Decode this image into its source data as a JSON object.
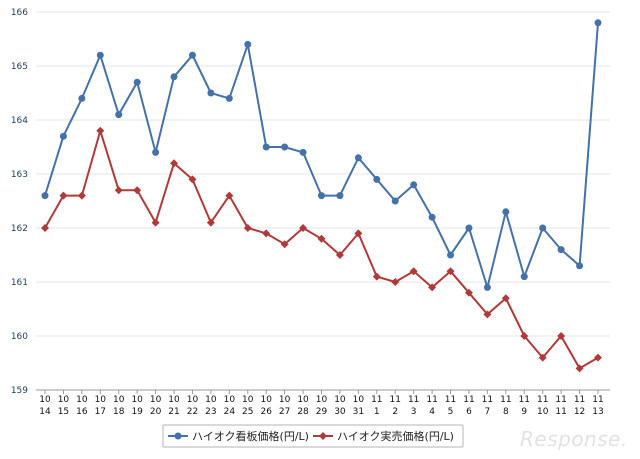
{
  "chart_data": {
    "type": "line",
    "title": "",
    "xlabel": "",
    "ylabel": "",
    "ylim": [
      159,
      166
    ],
    "yticks": [
      159,
      160,
      161,
      162,
      163,
      164,
      165,
      166
    ],
    "grid": true,
    "legend": "bottom",
    "categories": [
      [
        "10",
        "14"
      ],
      [
        "10",
        "15"
      ],
      [
        "10",
        "16"
      ],
      [
        "10",
        "17"
      ],
      [
        "10",
        "18"
      ],
      [
        "10",
        "19"
      ],
      [
        "10",
        "20"
      ],
      [
        "10",
        "21"
      ],
      [
        "10",
        "22"
      ],
      [
        "10",
        "23"
      ],
      [
        "10",
        "24"
      ],
      [
        "10",
        "25"
      ],
      [
        "10",
        "26"
      ],
      [
        "10",
        "27"
      ],
      [
        "10",
        "28"
      ],
      [
        "10",
        "29"
      ],
      [
        "10",
        "30"
      ],
      [
        "10",
        "31"
      ],
      [
        "11",
        "1"
      ],
      [
        "11",
        "2"
      ],
      [
        "11",
        "3"
      ],
      [
        "11",
        "4"
      ],
      [
        "11",
        "5"
      ],
      [
        "11",
        "6"
      ],
      [
        "11",
        "7"
      ],
      [
        "11",
        "8"
      ],
      [
        "11",
        "9"
      ],
      [
        "11",
        "10"
      ],
      [
        "11",
        "11"
      ],
      [
        "11",
        "12"
      ],
      [
        "11",
        "13"
      ]
    ],
    "series": [
      {
        "name": "ハイオク看板価格(円/L)",
        "color": "#4472a8",
        "marker": "circle",
        "values": [
          162.6,
          163.7,
          164.4,
          165.2,
          164.1,
          164.7,
          163.4,
          164.8,
          165.2,
          164.5,
          164.4,
          165.4,
          163.5,
          163.5,
          163.4,
          162.6,
          162.6,
          163.3,
          162.9,
          162.5,
          162.8,
          162.2,
          161.5,
          162.0,
          160.9,
          162.3,
          161.1,
          162.0,
          161.6,
          161.3,
          165.8
        ]
      },
      {
        "name": "ハイオク実売価格(円/L)",
        "color": "#b03a3a",
        "marker": "diamond",
        "values": [
          162.0,
          162.6,
          162.6,
          163.8,
          162.7,
          162.7,
          162.1,
          163.2,
          162.9,
          162.1,
          162.6,
          162.0,
          161.9,
          161.7,
          162.0,
          161.8,
          161.5,
          161.9,
          161.1,
          161.0,
          161.2,
          160.9,
          161.2,
          160.8,
          160.4,
          160.7,
          160.0,
          159.6,
          160.0,
          159.4,
          159.6
        ]
      }
    ]
  },
  "watermark": "Response."
}
